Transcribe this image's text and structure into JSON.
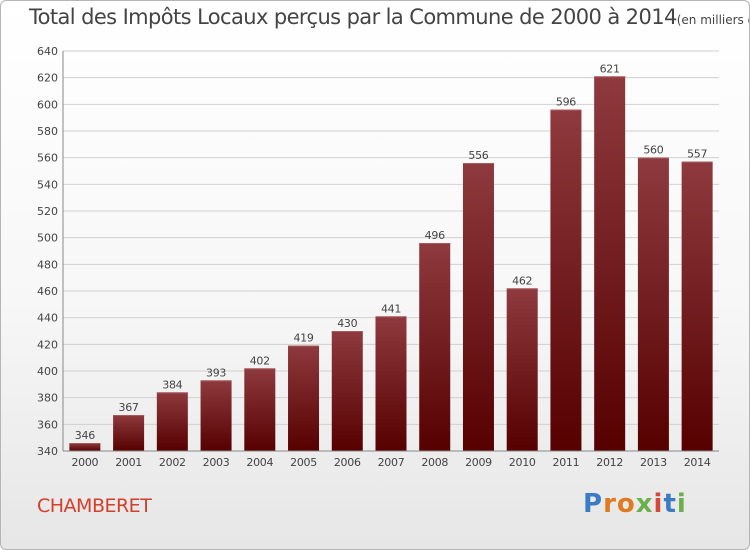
{
  "title": "Total des Impôts Locaux perçus par la Commune de 2000 à 2014",
  "subtitle": "(en milliers d'€)",
  "commune": "CHAMBERET",
  "logo": {
    "text": "Proxiti",
    "letters": [
      "P",
      "r",
      "o",
      "x",
      "i",
      "t",
      "i"
    ],
    "colors": [
      "#3a7cc4",
      "#e07a1f",
      "#e07a1f",
      "#6ab04c",
      "#d44a3a",
      "#3a7cc4",
      "#6ab04c"
    ]
  },
  "colors": {
    "bar_top": "#8e3a3e",
    "bar_bottom": "#560000",
    "grid": "#d0d0d0",
    "text": "#444444",
    "commune": "#d33f2a"
  },
  "chart_data": {
    "type": "bar",
    "title": "Total des Impôts Locaux perçus par la Commune de 2000 à 2014",
    "subtitle": "(en milliers d'€)",
    "xlabel": "",
    "ylabel": "",
    "categories": [
      "2000",
      "2001",
      "2002",
      "2003",
      "2004",
      "2005",
      "2006",
      "2007",
      "2008",
      "2009",
      "2010",
      "2011",
      "2012",
      "2013",
      "2014"
    ],
    "values": [
      346,
      367,
      384,
      393,
      402,
      419,
      430,
      441,
      496,
      556,
      462,
      596,
      621,
      560,
      557
    ],
    "ylim": [
      340,
      640
    ],
    "yticks": [
      340,
      360,
      380,
      400,
      420,
      440,
      460,
      480,
      500,
      520,
      540,
      560,
      580,
      600,
      620,
      640
    ],
    "grid": true,
    "legend": "none"
  }
}
